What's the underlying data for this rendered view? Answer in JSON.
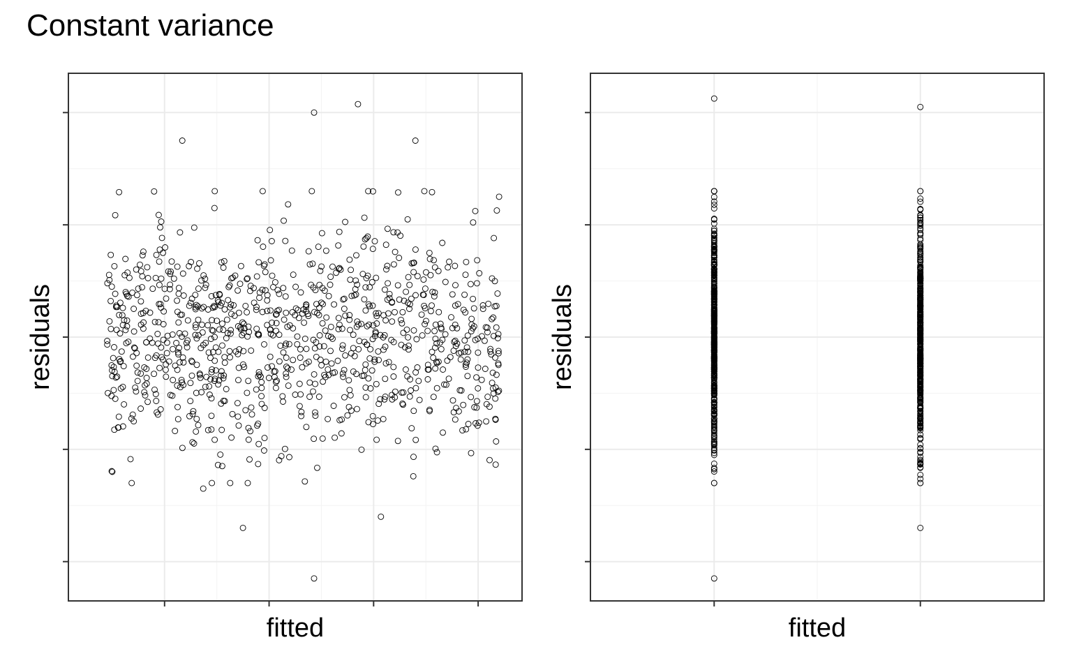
{
  "page": {
    "title": "Constant variance"
  },
  "chart_data": [
    {
      "type": "scatter",
      "title": "",
      "xlabel": "fitted",
      "ylabel": "residuals",
      "tick_labels_shown": false,
      "grid": true,
      "theme": "black-and-white",
      "marker": "open circle",
      "xlim": [
        -0.92,
        3.42
      ],
      "ylim": [
        -4.7,
        4.7
      ],
      "x_ticks": [
        0,
        1,
        2,
        3
      ],
      "y_ticks": [
        -4,
        -2,
        0,
        2,
        4
      ],
      "n_points": 1000,
      "x_range": [
        -0.55,
        3.2
      ],
      "residual_sd": 1.02,
      "points": [
        {
          "x": 3.2,
          "y": 2.5
        },
        {
          "x": 1.43,
          "y": 4.0
        },
        {
          "x": 1.85,
          "y": 4.15
        },
        {
          "x": 0.17,
          "y": 3.5
        },
        {
          "x": 2.4,
          "y": 3.5
        },
        {
          "x": 1.43,
          "y": -4.3
        },
        {
          "x": 0.75,
          "y": -3.4
        },
        {
          "x": 2.07,
          "y": -3.2
        },
        {
          "x": -0.5,
          "y": -2.4
        },
        {
          "x": 0.37,
          "y": -2.7
        }
      ]
    },
    {
      "type": "scatter",
      "title": "",
      "xlabel": "fitted",
      "ylabel": "residuals",
      "tick_labels_shown": false,
      "grid": true,
      "theme": "black-and-white",
      "marker": "open circle",
      "xlim": [
        -0.6,
        1.6
      ],
      "ylim": [
        -4.7,
        4.7
      ],
      "x_ticks": [
        0,
        1
      ],
      "y_ticks": [
        -4,
        -2,
        0,
        2,
        4
      ],
      "groups": [
        {
          "x": 0,
          "n": 500,
          "y_max": 4.25,
          "y_min": -4.3
        },
        {
          "x": 1,
          "n": 500,
          "y_max": 4.1,
          "y_min": -3.4
        }
      ],
      "residual_sd": 1.02
    }
  ]
}
